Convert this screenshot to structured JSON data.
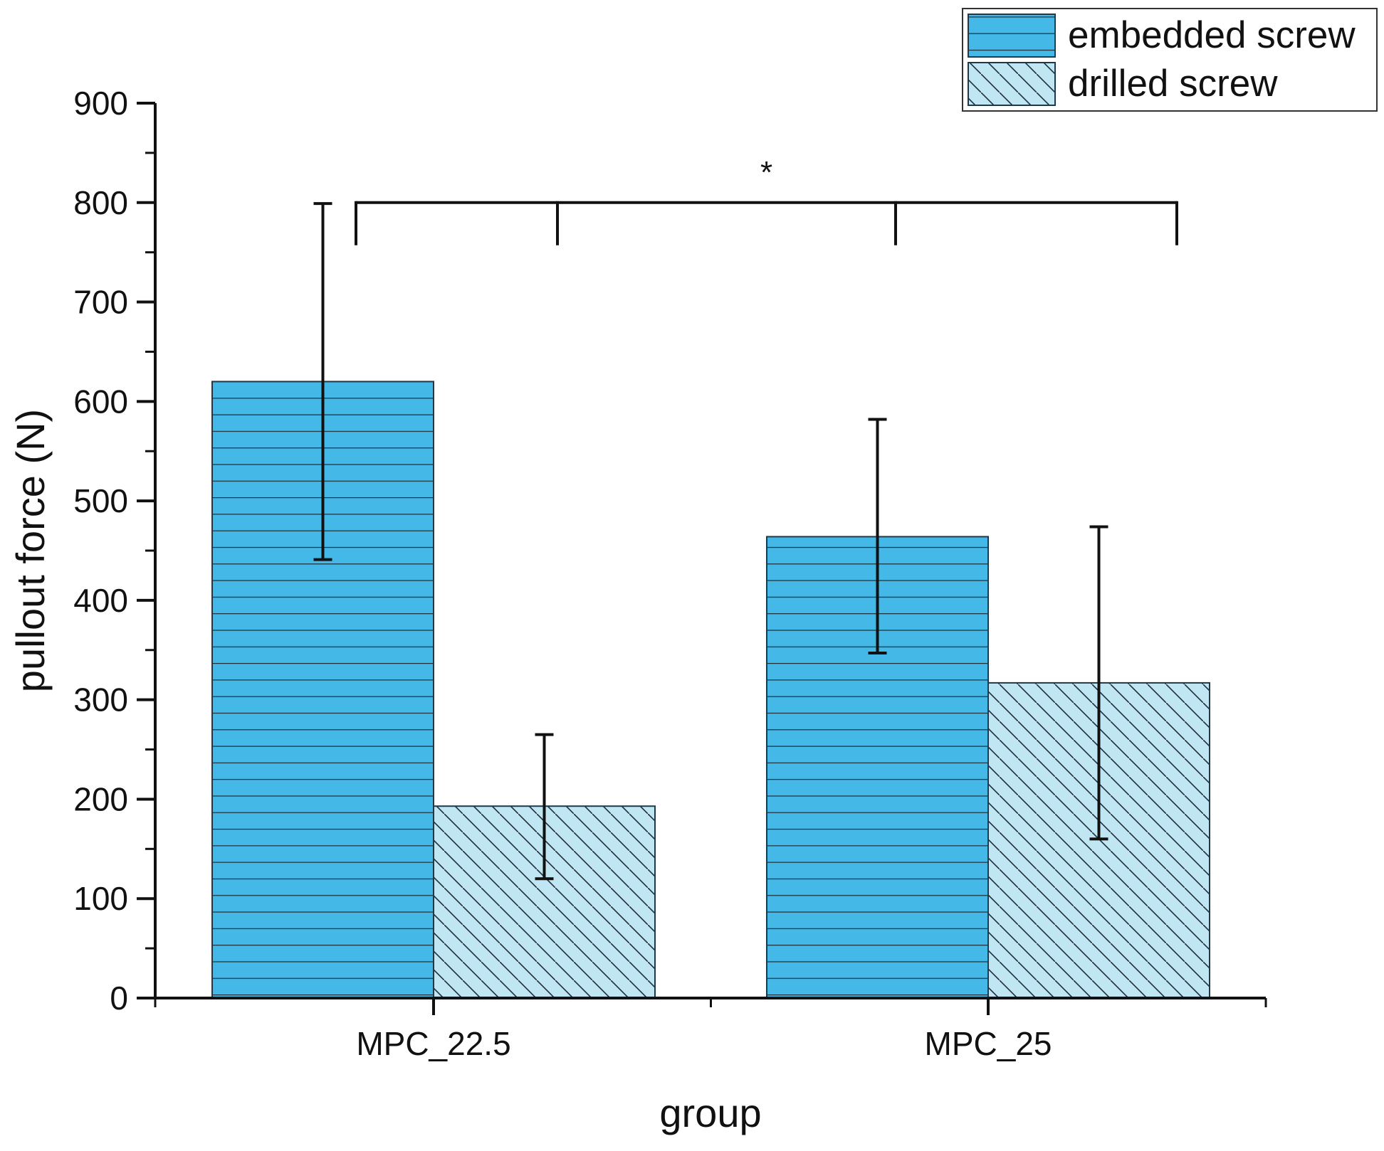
{
  "chart_data": {
    "type": "bar",
    "title": "",
    "xlabel": "group",
    "ylabel": "pullout force (N)",
    "ylim": [
      0,
      900
    ],
    "yticks": [
      0,
      100,
      200,
      300,
      400,
      500,
      600,
      700,
      800,
      900
    ],
    "categories": [
      "MPC_22.5",
      "MPC_25"
    ],
    "series": [
      {
        "name": "embedded screw",
        "pattern": "horizontal-lines",
        "color": "#44b8e6",
        "values": [
          620,
          464
        ],
        "error_low": [
          441,
          347
        ],
        "error_high": [
          799,
          582
        ]
      },
      {
        "name": "drilled screw",
        "pattern": "diagonal-hatch",
        "color": "#c0e6f4",
        "values": [
          193,
          317
        ],
        "error_low": [
          120,
          160
        ],
        "error_high": [
          265,
          474
        ]
      }
    ],
    "legend_position": "top-right",
    "significance": {
      "label": "*",
      "between": [
        "MPC_22.5",
        "MPC_25"
      ]
    }
  },
  "colors": {
    "axis": "#111111",
    "bar_edge": "#1e3a4a",
    "hatch": "#1f2d36"
  }
}
